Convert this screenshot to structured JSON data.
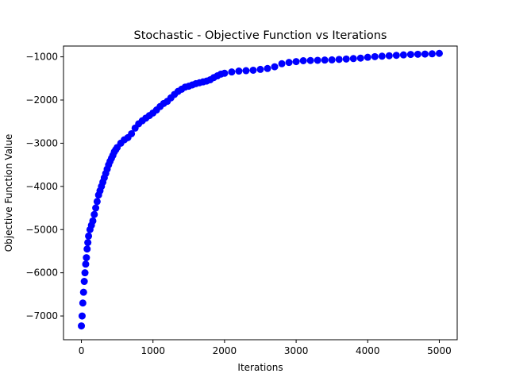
{
  "chart_data": {
    "type": "scatter",
    "title": "Stochastic - Objective Function vs Iterations",
    "xlabel": "Iterations",
    "ylabel": "Objective Function Value",
    "xlim": [
      -250,
      5250
    ],
    "ylim": [
      -7550,
      -750
    ],
    "xticks": [
      0,
      1000,
      2000,
      3000,
      4000,
      5000
    ],
    "yticks": [
      -7000,
      -6000,
      -5000,
      -4000,
      -3000,
      -2000,
      -1000
    ],
    "grid": false,
    "legend": "none",
    "marker_color": "#0000ff",
    "series": [
      {
        "x": [
          0,
          10,
          20,
          30,
          40,
          50,
          60,
          70,
          80,
          90,
          100,
          120,
          140,
          160,
          180,
          200,
          220,
          240,
          260,
          280,
          300,
          320,
          340,
          360,
          380,
          400,
          420,
          440,
          460,
          480,
          500,
          550,
          600,
          650,
          700,
          750,
          800,
          850,
          900,
          950,
          1000,
          1050,
          1100,
          1150,
          1200,
          1250,
          1300,
          1350,
          1400,
          1450,
          1500,
          1550,
          1600,
          1650,
          1700,
          1750,
          1800,
          1850,
          1900,
          1950,
          2000,
          2100,
          2200,
          2300,
          2400,
          2500,
          2600,
          2700,
          2800,
          2900,
          3000,
          3100,
          3200,
          3300,
          3400,
          3500,
          3600,
          3700,
          3800,
          3900,
          4000,
          4100,
          4200,
          4300,
          4400,
          4500,
          4600,
          4700,
          4800,
          4900,
          5000
        ],
        "y": [
          -7230,
          -7000,
          -6700,
          -6450,
          -6200,
          -6000,
          -5800,
          -5650,
          -5450,
          -5300,
          -5150,
          -5000,
          -4900,
          -4800,
          -4650,
          -4500,
          -4350,
          -4200,
          -4100,
          -4000,
          -3900,
          -3800,
          -3700,
          -3600,
          -3500,
          -3420,
          -3350,
          -3280,
          -3200,
          -3150,
          -3100,
          -3000,
          -2920,
          -2870,
          -2780,
          -2650,
          -2550,
          -2480,
          -2420,
          -2360,
          -2300,
          -2230,
          -2150,
          -2080,
          -2030,
          -1950,
          -1870,
          -1800,
          -1750,
          -1700,
          -1680,
          -1650,
          -1620,
          -1600,
          -1580,
          -1560,
          -1530,
          -1480,
          -1440,
          -1400,
          -1380,
          -1350,
          -1330,
          -1320,
          -1310,
          -1290,
          -1270,
          -1230,
          -1160,
          -1130,
          -1110,
          -1090,
          -1085,
          -1080,
          -1075,
          -1070,
          -1060,
          -1050,
          -1040,
          -1030,
          -1010,
          -995,
          -985,
          -975,
          -965,
          -955,
          -945,
          -940,
          -935,
          -930,
          -920
        ]
      }
    ]
  }
}
